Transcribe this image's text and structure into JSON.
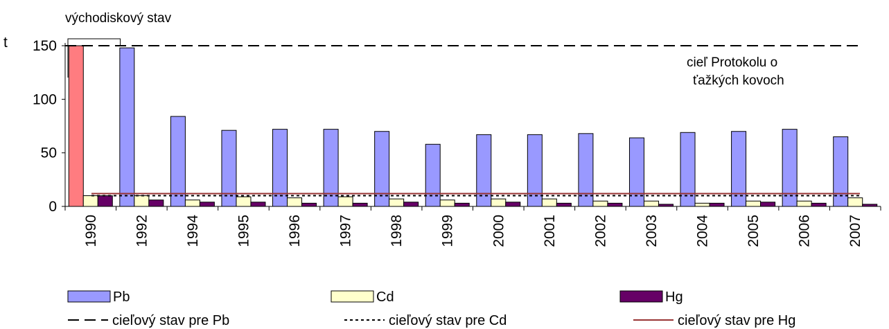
{
  "chart_data": {
    "type": "bar",
    "ylabel": "t",
    "ylim": [
      0,
      150
    ],
    "yticks": [
      0,
      50,
      100,
      150
    ],
    "categories": [
      "1990",
      "1992",
      "1994",
      "1995",
      "1996",
      "1997",
      "1998",
      "1999",
      "2000",
      "2001",
      "2002",
      "2003",
      "2004",
      "2005",
      "2006",
      "2007"
    ],
    "series": [
      {
        "name": "Pb",
        "color": "#9999ff",
        "values": [
          150,
          148,
          84,
          71,
          72,
          72,
          70,
          58,
          67,
          67,
          68,
          64,
          69,
          70,
          72,
          65
        ]
      },
      {
        "name": "Cd",
        "color": "#ffffcc",
        "values": [
          10,
          10,
          6,
          9,
          8,
          9,
          7,
          6,
          7,
          7,
          5,
          5,
          3,
          5,
          5,
          8
        ]
      },
      {
        "name": "Hg",
        "color": "#660066",
        "values": [
          10,
          6,
          4,
          4,
          3,
          3,
          4,
          3,
          4,
          3,
          3,
          2,
          3,
          4,
          3,
          2
        ]
      }
    ],
    "baseline_colors": {
      "1990_bar": "#ff7c80"
    },
    "target_lines": [
      {
        "name": "cieľový stav pre Pb",
        "value": 150,
        "style": "dashed",
        "color": "#000000"
      },
      {
        "name": "cieľový stav pre Cd",
        "value": 10,
        "style": "dotted",
        "color": "#000000"
      },
      {
        "name": "cieľový stav pre Hg",
        "value": 12,
        "style": "solid",
        "color": "#993333"
      }
    ],
    "annotations": {
      "baseline": "východiskový stav",
      "protocol_line1": "cieľ Protokolu o",
      "protocol_line2": "ťažkých kovoch"
    },
    "grid": false,
    "legend_position": "bottom"
  }
}
